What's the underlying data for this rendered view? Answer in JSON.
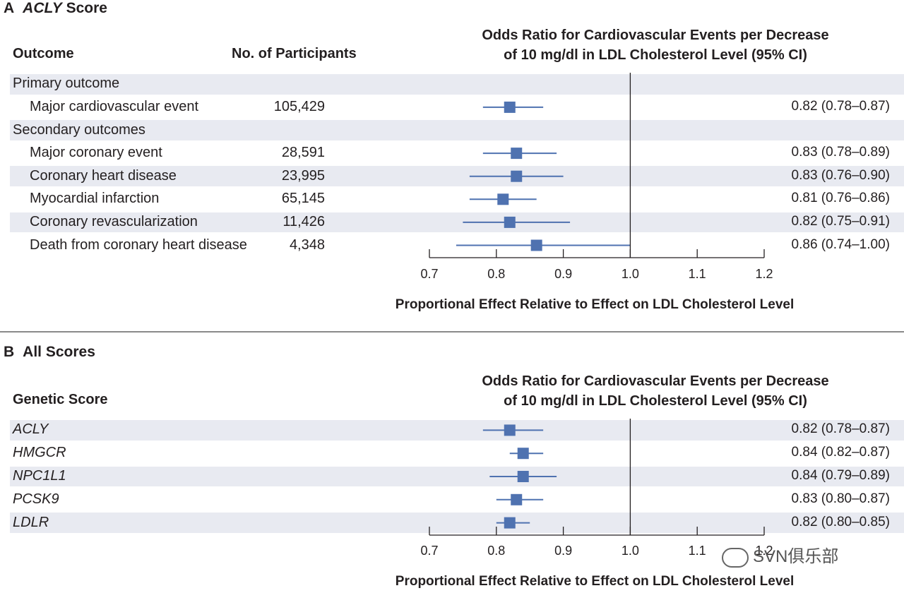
{
  "chart_data": [
    {
      "type": "forest",
      "panel": "A",
      "title_prefix": "A",
      "title_italic": "ACLY",
      "title_rest": "Score",
      "column_headers": {
        "outcome": "Outcome",
        "participants": "No. of Participants",
        "effect_line1": "Odds Ratio for Cardiovascular Events per Decrease",
        "effect_line2": "of 10 mg/dl in LDL Cholesterol Level (95% CI)"
      },
      "xlabel": "Proportional Effect Relative to Effect on LDL Cholesterol Level",
      "xlim": [
        0.7,
        1.2
      ],
      "ticks": [
        "0.7",
        "0.8",
        "0.9",
        "1.0",
        "1.1",
        "1.2"
      ],
      "reference_line": 1.0,
      "rows": [
        {
          "kind": "group",
          "label": "Primary outcome"
        },
        {
          "kind": "item",
          "label": "Major cardiovascular event",
          "participants": "105,429",
          "or": 0.82,
          "lo": 0.78,
          "hi": 0.87,
          "ci_text": "0.82 (0.78–0.87)"
        },
        {
          "kind": "group",
          "label": "Secondary outcomes"
        },
        {
          "kind": "item",
          "label": "Major coronary event",
          "participants": "28,591",
          "or": 0.83,
          "lo": 0.78,
          "hi": 0.89,
          "ci_text": "0.83 (0.78–0.89)"
        },
        {
          "kind": "item",
          "label": "Coronary heart disease",
          "participants": "23,995",
          "or": 0.83,
          "lo": 0.76,
          "hi": 0.9,
          "ci_text": "0.83 (0.76–0.90)"
        },
        {
          "kind": "item",
          "label": "Myocardial infarction",
          "participants": "65,145",
          "or": 0.81,
          "lo": 0.76,
          "hi": 0.86,
          "ci_text": "0.81 (0.76–0.86)"
        },
        {
          "kind": "item",
          "label": "Coronary revascularization",
          "participants": "11,426",
          "or": 0.82,
          "lo": 0.75,
          "hi": 0.91,
          "ci_text": "0.82 (0.75–0.91)"
        },
        {
          "kind": "item",
          "label": "Death from coronary heart disease",
          "participants": "4,348",
          "or": 0.86,
          "lo": 0.74,
          "hi": 1.0,
          "ci_text": "0.86 (0.74–1.00)"
        }
      ]
    },
    {
      "type": "forest",
      "panel": "B",
      "title_prefix": "B",
      "title_text": "All Scores",
      "column_headers": {
        "score": "Genetic Score",
        "effect_line1": "Odds Ratio for Cardiovascular Events per Decrease",
        "effect_line2": "of 10 mg/dl in LDL Cholesterol Level (95% CI)"
      },
      "xlabel": "Proportional Effect Relative to Effect on LDL Cholesterol Level",
      "xlim": [
        0.7,
        1.2
      ],
      "ticks": [
        "0.7",
        "0.8",
        "0.9",
        "1.0",
        "1.1",
        "1.2"
      ],
      "reference_line": 1.0,
      "rows": [
        {
          "kind": "item",
          "label": "ACLY",
          "or": 0.82,
          "lo": 0.78,
          "hi": 0.87,
          "ci_text": "0.82 (0.78–0.87)"
        },
        {
          "kind": "item",
          "label": "HMGCR",
          "or": 0.84,
          "lo": 0.82,
          "hi": 0.87,
          "ci_text": "0.84 (0.82–0.87)"
        },
        {
          "kind": "item",
          "label": "NPC1L1",
          "or": 0.84,
          "lo": 0.79,
          "hi": 0.89,
          "ci_text": "0.84 (0.79–0.89)"
        },
        {
          "kind": "item",
          "label": "PCSK9",
          "or": 0.83,
          "lo": 0.8,
          "hi": 0.87,
          "ci_text": "0.83 (0.80–0.87)"
        },
        {
          "kind": "item",
          "label": "LDLR",
          "or": 0.82,
          "lo": 0.8,
          "hi": 0.85,
          "ci_text": "0.82 (0.80–0.85)"
        }
      ]
    }
  ],
  "colors": {
    "marker": "#4f72b0",
    "band": "#e8eaf1",
    "axis": "#231f20",
    "divider": "#8a8a8a"
  },
  "watermark": {
    "text": "SVN俱乐部",
    "icon": "wechat-icon"
  }
}
